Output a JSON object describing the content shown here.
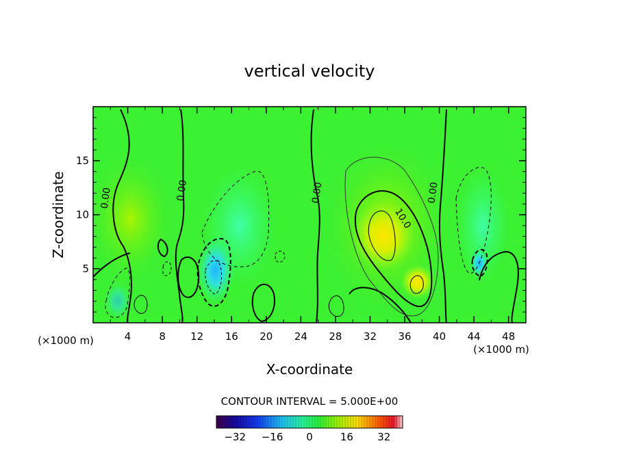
{
  "chart_data": {
    "type": "heatmap",
    "title": "vertical velocity",
    "xlabel": "X-coordinate",
    "ylabel": "Z-coordinate",
    "x_unit": "(×1000 m)",
    "y_unit": "(×1000 m)",
    "xlim": [
      0,
      50
    ],
    "ylim": [
      0,
      20
    ],
    "x_ticks": [
      "4",
      "8",
      "12",
      "16",
      "20",
      "24",
      "28",
      "32",
      "36",
      "40",
      "44",
      "48"
    ],
    "y_ticks": [
      "5",
      "10",
      "15"
    ],
    "contour_interval_text": "CONTOUR INTERVAL = 5.000E+00",
    "contour_interval": 5.0,
    "contour_labels": [
      {
        "text": "0.00",
        "x": 1.8,
        "z": 11.5
      },
      {
        "text": "0.00",
        "x": 10.6,
        "z": 12.2
      },
      {
        "text": "0.00",
        "x": 26.2,
        "z": 12.0
      },
      {
        "text": "10.0",
        "x": 35.5,
        "z": 9.5
      },
      {
        "text": "0.00",
        "x": 39.6,
        "z": 12.0
      }
    ],
    "features": [
      {
        "kind": "updraft",
        "x": 33.5,
        "z": 8.5,
        "w": 10
      },
      {
        "kind": "updraft",
        "x": 37.3,
        "z": 3.9,
        "w": 10
      },
      {
        "kind": "downdraft",
        "x": 14.0,
        "z": 5.0,
        "w": -15
      },
      {
        "kind": "downdraft",
        "x": 44.8,
        "z": 5.5,
        "w": -10
      }
    ],
    "colorbar": {
      "ticks": [
        "−32",
        "−16",
        "0",
        "16",
        "32"
      ],
      "range": [
        -40,
        40
      ]
    }
  }
}
